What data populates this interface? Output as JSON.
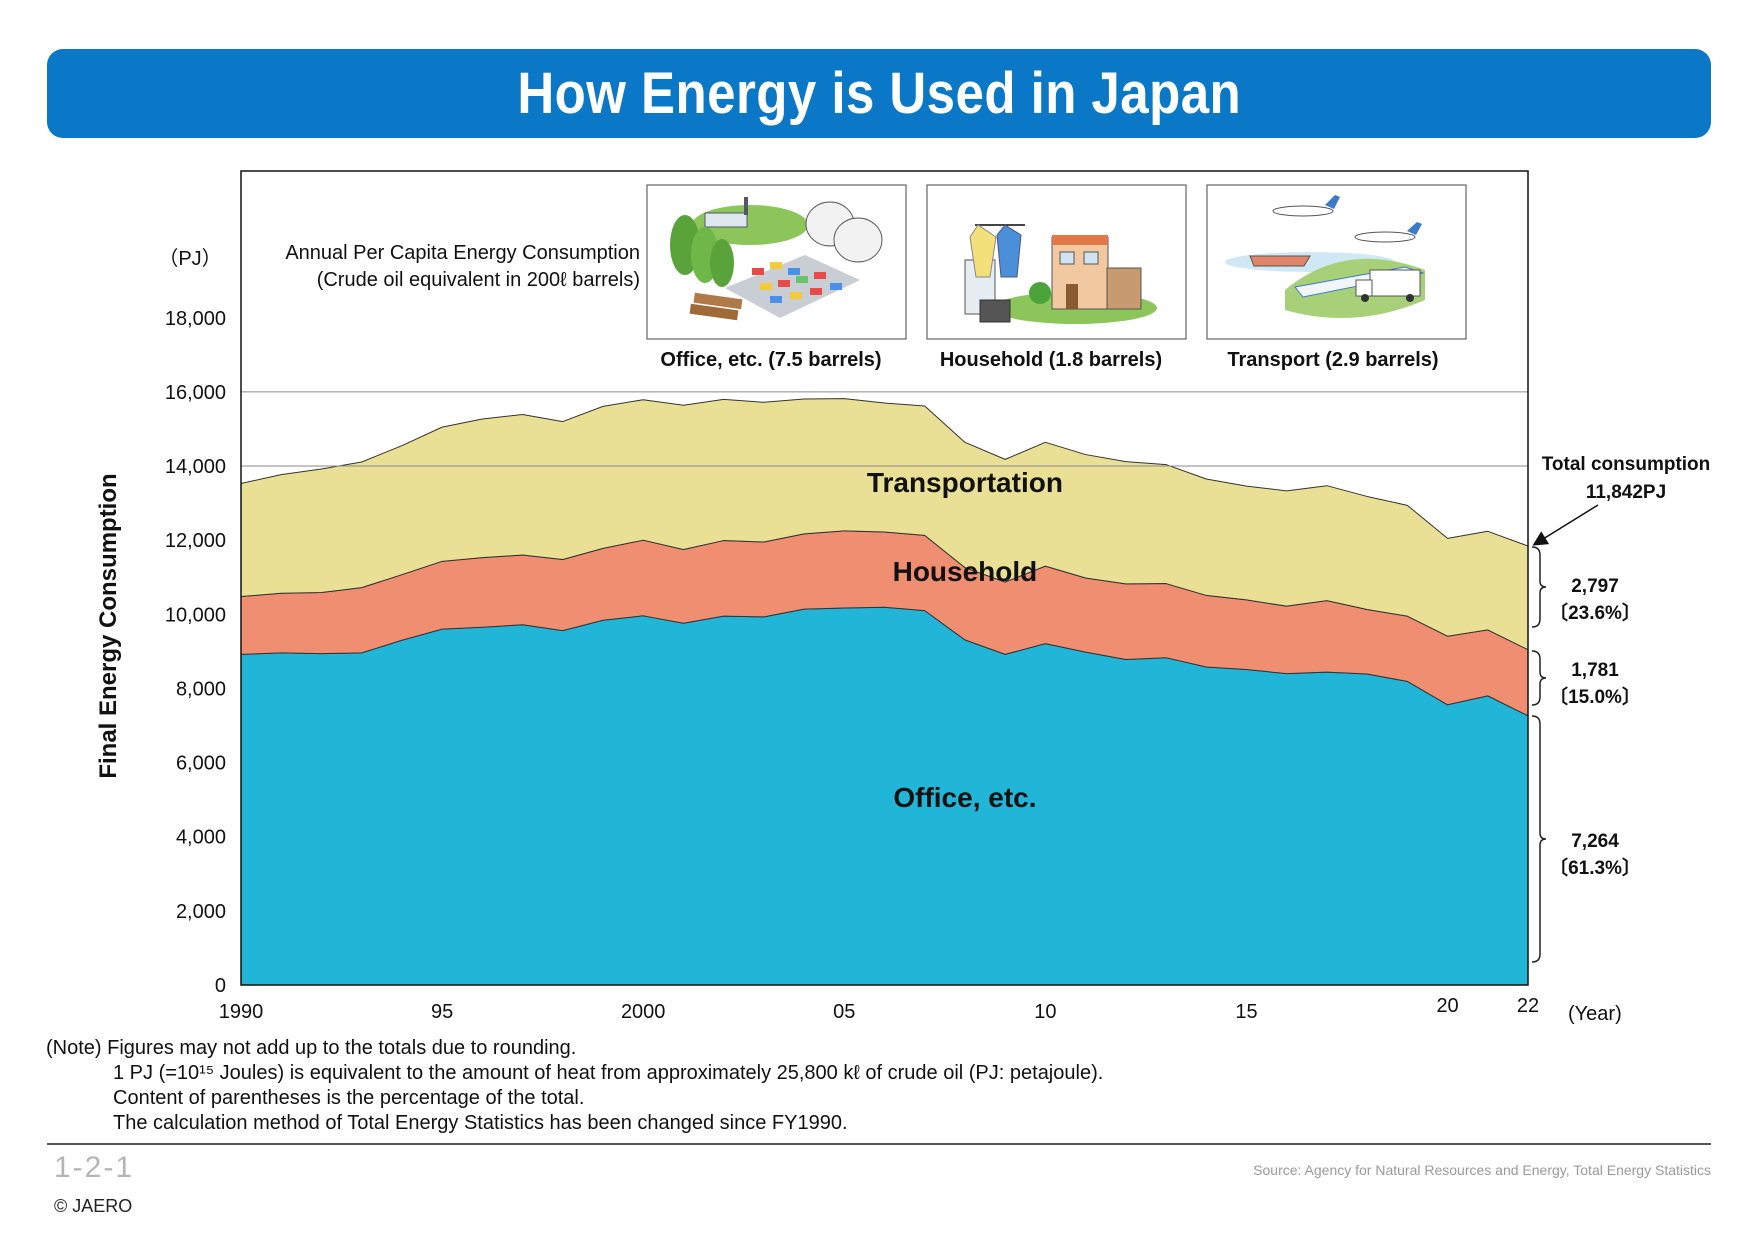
{
  "title": "How Energy is Used in Japan",
  "chart_data": {
    "type": "area",
    "stacked": true,
    "y_unit_label": "（PJ）",
    "ylabel": "Final Energy Consumption",
    "xlabel": "(Year)",
    "ylim": [
      0,
      18000
    ],
    "yticks": [
      0,
      2000,
      4000,
      6000,
      8000,
      10000,
      12000,
      14000,
      16000,
      18000
    ],
    "ytick_labels": [
      "0",
      "2,000",
      "4,000",
      "6,000",
      "8,000",
      "10,000",
      "12,000",
      "14,000",
      "16,000",
      "18,000"
    ],
    "xlim": [
      1990,
      2022
    ],
    "xticks": [
      1990,
      1995,
      2000,
      2005,
      2010,
      2015,
      2020,
      2022
    ],
    "xtick_labels": [
      "1990",
      "95",
      "2000",
      "05",
      "10",
      "15",
      "20",
      "22"
    ],
    "x": [
      1990,
      1991,
      1992,
      1993,
      1994,
      1995,
      1996,
      1997,
      1998,
      1999,
      2000,
      2001,
      2002,
      2003,
      2004,
      2005,
      2006,
      2007,
      2008,
      2009,
      2010,
      2011,
      2012,
      2013,
      2014,
      2015,
      2016,
      2017,
      2018,
      2019,
      2020,
      2021,
      2022
    ],
    "series": [
      {
        "name": "Office, etc.",
        "color": "#21b5d8",
        "values": [
          8920,
          8960,
          8940,
          8960,
          9300,
          9600,
          9650,
          9720,
          9560,
          9840,
          9960,
          9760,
          9950,
          9930,
          10140,
          10170,
          10190,
          10100,
          9310,
          8920,
          9210,
          8980,
          8780,
          8830,
          8580,
          8510,
          8400,
          8440,
          8390,
          8190,
          7560,
          7800,
          7264
        ]
      },
      {
        "name": "Household",
        "color": "#f08e72",
        "values": [
          1560,
          1610,
          1650,
          1760,
          1770,
          1830,
          1880,
          1880,
          1920,
          1940,
          2040,
          1990,
          2040,
          2020,
          2030,
          2080,
          2030,
          2030,
          1950,
          1950,
          2090,
          2000,
          2040,
          2000,
          1930,
          1880,
          1820,
          1930,
          1740,
          1760,
          1850,
          1780,
          1781
        ]
      },
      {
        "name": "Transportation",
        "color": "#e9e096",
        "values": [
          3050,
          3200,
          3330,
          3390,
          3480,
          3620,
          3740,
          3790,
          3720,
          3830,
          3790,
          3890,
          3810,
          3770,
          3640,
          3570,
          3480,
          3490,
          3380,
          3310,
          3340,
          3330,
          3300,
          3210,
          3140,
          3070,
          3110,
          3100,
          3050,
          2990,
          2640,
          2660,
          2797
        ]
      }
    ],
    "series_labels": [
      "Transportation",
      "Household",
      "Office, etc."
    ],
    "total_annotation": [
      "Total consumption",
      "11,842PJ"
    ],
    "right_annotations": [
      {
        "value": "2,797",
        "pct": "〔23.6%〕"
      },
      {
        "value": "1,781",
        "pct": "〔15.0%〕"
      },
      {
        "value": "7,264",
        "pct": "〔61.3%〕"
      }
    ],
    "per_capita_title": [
      "Annual Per Capita Energy Consumption",
      "(Crude oil equivalent in 200ℓ barrels)"
    ],
    "per_capita": [
      {
        "label": "Office, etc. (7.5 barrels)",
        "icon": "factory-icon"
      },
      {
        "label": "Household (1.8 barrels)",
        "icon": "house-icon"
      },
      {
        "label": "Transport (2.9 barrels)",
        "icon": "transport-icon"
      }
    ]
  },
  "notes": [
    "(Note) Figures may not add up to the totals due to rounding.",
    "1 PJ (=10¹⁵ Joules) is equivalent to the amount of heat from approximately 25,800 kℓ of crude oil (PJ: petajoule).",
    "Content of parentheses is the percentage of the total.",
    "The calculation method of Total Energy Statistics has been changed since FY1990."
  ],
  "footer": {
    "page_number": "1-2-1",
    "copyright": "© JAERO",
    "source": "Source: Agency for Natural Resources and Energy, Total Energy Statistics"
  }
}
